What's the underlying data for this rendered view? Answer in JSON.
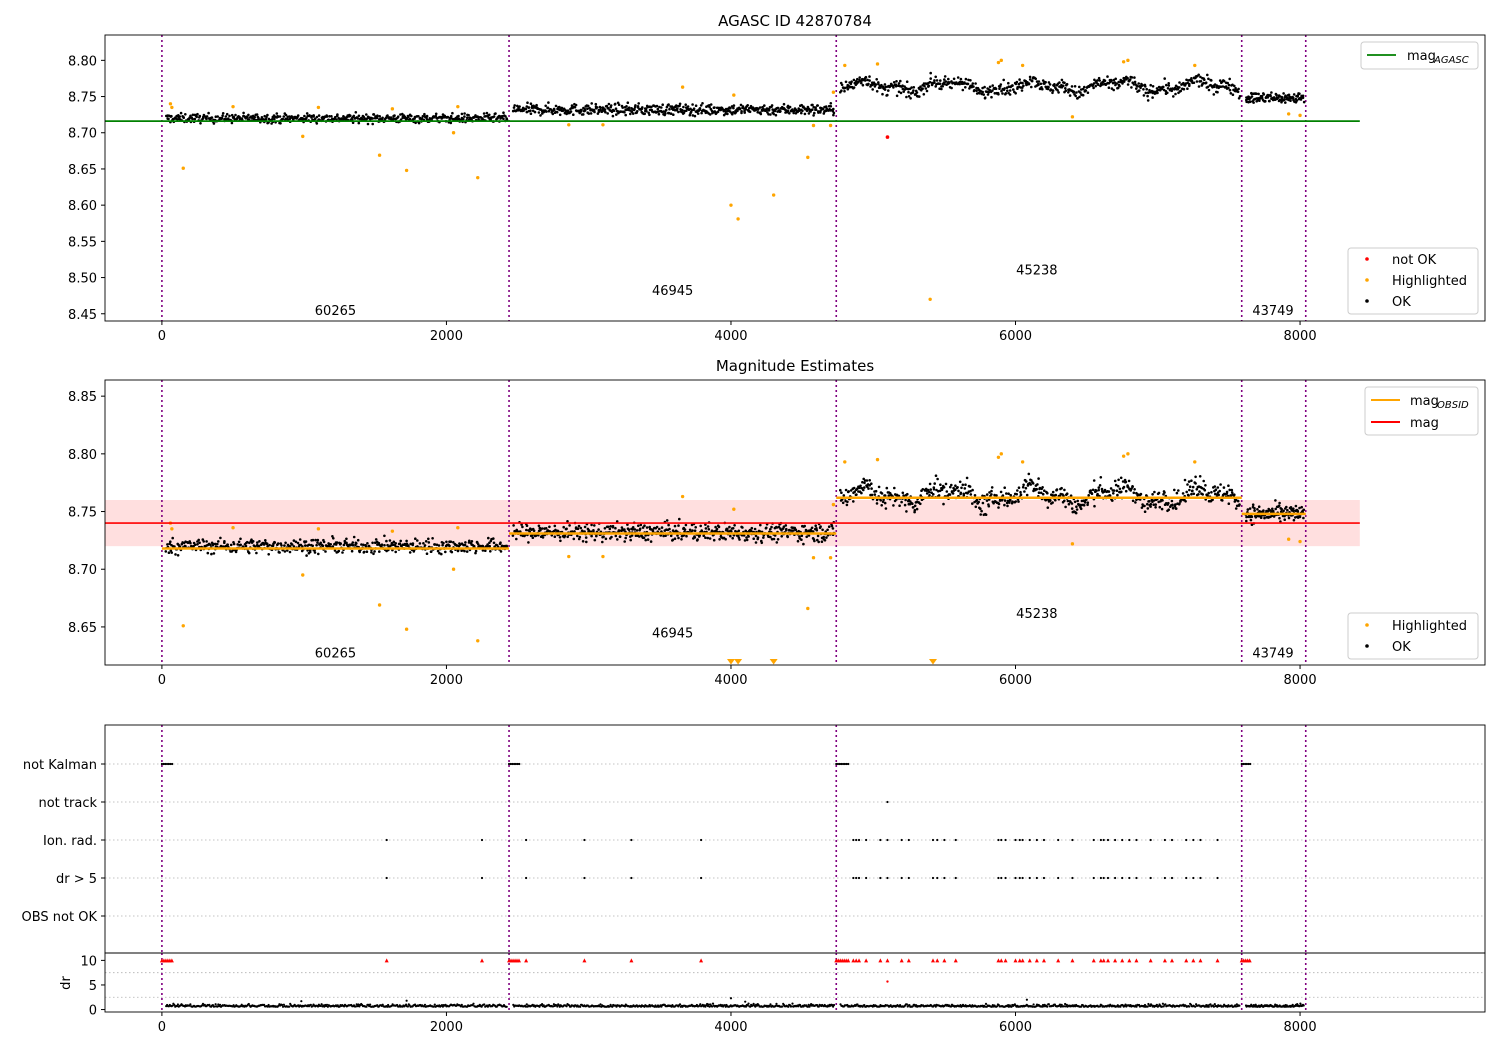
{
  "chart_data": [
    {
      "type": "scatter",
      "title": "AGASC ID 42870784",
      "xlim": [
        -400,
        9300
      ],
      "ylim": [
        8.44,
        8.835
      ],
      "xticks": [
        0,
        2000,
        4000,
        6000,
        8000
      ],
      "yticks": [
        8.45,
        8.5,
        8.55,
        8.6,
        8.65,
        8.7,
        8.75,
        8.8
      ],
      "vlines": [
        0,
        2440,
        4740,
        7590,
        8040
      ],
      "obsids": [
        {
          "label": "60265",
          "x": 1220,
          "y": 8.455,
          "segment": [
            0,
            2440
          ],
          "level": 8.718
        },
        {
          "label": "46945",
          "x": 3590,
          "y": 8.483,
          "segment": [
            2440,
            4740
          ],
          "level": 8.731
        },
        {
          "label": "45238",
          "x": 6150,
          "y": 8.511,
          "segment": [
            4740,
            7590
          ],
          "level": 8.762
        },
        {
          "label": "43749",
          "x": 7810,
          "y": 8.455,
          "segment": [
            7590,
            8040
          ],
          "level": 8.748
        }
      ],
      "mag_agasc": {
        "value": 8.716,
        "xrange": [
          -400,
          8420
        ]
      },
      "highlighted": [
        [
          60,
          8.74
        ],
        [
          70,
          8.735
        ],
        [
          150,
          8.651
        ],
        [
          500,
          8.736
        ],
        [
          990,
          8.695
        ],
        [
          1100,
          8.735
        ],
        [
          1530,
          8.669
        ],
        [
          1620,
          8.733
        ],
        [
          1720,
          8.648
        ],
        [
          2050,
          8.7
        ],
        [
          2080,
          8.736
        ],
        [
          2220,
          8.638
        ],
        [
          2860,
          8.711
        ],
        [
          3100,
          8.711
        ],
        [
          3660,
          8.763
        ],
        [
          4000,
          8.6
        ],
        [
          4050,
          8.581
        ],
        [
          4300,
          8.614
        ],
        [
          4020,
          8.752
        ],
        [
          4580,
          8.71
        ],
        [
          4540,
          8.666
        ],
        [
          4700,
          8.71
        ],
        [
          4720,
          8.756
        ],
        [
          4800,
          8.793
        ],
        [
          5030,
          8.795
        ],
        [
          5400,
          8.47
        ],
        [
          5880,
          8.797
        ],
        [
          5900,
          8.8
        ],
        [
          6050,
          8.793
        ],
        [
          6400,
          8.722
        ],
        [
          6760,
          8.798
        ],
        [
          6790,
          8.8
        ],
        [
          7260,
          8.793
        ],
        [
          7920,
          8.726
        ],
        [
          8000,
          8.724
        ]
      ],
      "not_ok": [
        [
          5100,
          8.694
        ]
      ],
      "legend_upper": [
        {
          "label": "mag",
          "sub": "AGASC",
          "color": "#008000"
        }
      ],
      "legend_lower": [
        {
          "label": "not OK",
          "color": "#ff0000"
        },
        {
          "label": "Highlighted",
          "color": "#ffa500"
        },
        {
          "label": "OK",
          "color": "#000000"
        }
      ]
    },
    {
      "type": "scatter",
      "title": "Magnitude Estimates",
      "xlim": [
        -400,
        9300
      ],
      "ylim": [
        8.617,
        8.864
      ],
      "xticks": [
        0,
        2000,
        4000,
        6000,
        8000
      ],
      "yticks": [
        8.65,
        8.7,
        8.75,
        8.8,
        8.85
      ],
      "vlines": [
        0,
        2440,
        4740,
        7590,
        8040
      ],
      "obsids": [
        {
          "label": "60265",
          "x": 1220,
          "y": 8.628
        },
        {
          "label": "46945",
          "x": 3590,
          "y": 8.645
        },
        {
          "label": "45238",
          "x": 6150,
          "y": 8.662
        },
        {
          "label": "43749",
          "x": 7810,
          "y": 8.628
        }
      ],
      "mag": {
        "value": 8.74,
        "band": [
          8.72,
          8.76
        ],
        "xrange": [
          -400,
          8420
        ]
      },
      "mag_obsid_segments": [
        [
          0,
          2440,
          8.718
        ],
        [
          2440,
          4740,
          8.731
        ],
        [
          4740,
          7590,
          8.762
        ],
        [
          7590,
          8040,
          8.748
        ]
      ],
      "lower_limit_markers": [
        4000,
        4050,
        4300,
        5420
      ],
      "legend_upper": [
        {
          "label": "mag",
          "sub": "OBSID",
          "color": "#ffa500"
        },
        {
          "label": "mag",
          "sub": "",
          "color": "#ff0000"
        }
      ],
      "legend_lower": [
        {
          "label": "Highlighted",
          "color": "#ffa500"
        },
        {
          "label": "OK",
          "color": "#000000"
        }
      ]
    },
    {
      "type": "scatter",
      "xlim": [
        -400,
        9300
      ],
      "xticks": [
        0,
        2000,
        4000,
        6000,
        8000
      ],
      "flag_rows": [
        "not Kalman",
        "not track",
        "Ion. rad.",
        "dr > 5",
        "OBS not OK"
      ],
      "not_kalman": [
        [
          0,
          80
        ],
        [
          2440,
          2520
        ],
        [
          4740,
          4830
        ],
        [
          7590,
          7650
        ]
      ],
      "not_track": [
        5100
      ],
      "ion_rad": [
        1580,
        2250,
        2560,
        2970,
        3300,
        3790,
        4860,
        4880,
        4900,
        4950,
        5050,
        5100,
        5200,
        5250,
        5420,
        5450,
        5500,
        5580,
        5880,
        5900,
        5930,
        6000,
        6030,
        6050,
        6100,
        6150,
        6200,
        6300,
        6400,
        6550,
        6600,
        6620,
        6650,
        6700,
        6750,
        6800,
        6850,
        6950,
        7050,
        7100,
        7200,
        7250,
        7300,
        7420
      ],
      "dr_label": "dr",
      "dr_ylim": [
        -0.5,
        11.5
      ],
      "dr_yticks": [
        0,
        5,
        10
      ],
      "dr_highlight": [
        5100,
        5.7
      ],
      "dr_outliers": [
        [
          980,
          1.7
        ],
        [
          1720,
          1.8
        ],
        [
          4000,
          2.3
        ],
        [
          4100,
          1.6
        ],
        [
          6080,
          2.0
        ]
      ]
    }
  ]
}
